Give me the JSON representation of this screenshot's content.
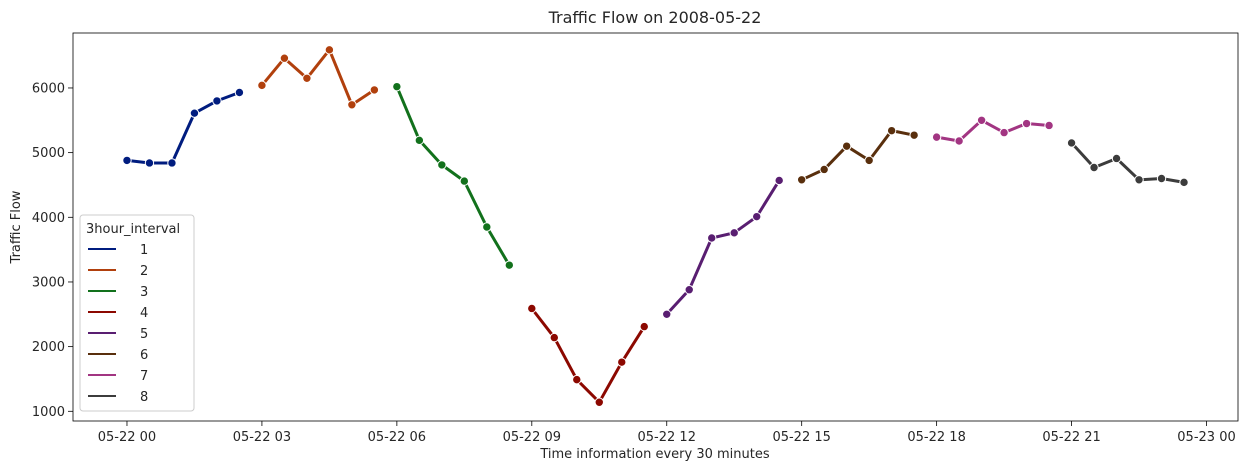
{
  "chart_data": {
    "type": "line",
    "title": "Traffic Flow on 2008-05-22",
    "xlabel": "Time information every 30 minutes",
    "ylabel": "Traffic Flow",
    "x_ticks": [
      "05-22 00",
      "05-22 03",
      "05-22 06",
      "05-22 09",
      "05-22 12",
      "05-22 15",
      "05-22 18",
      "05-22 21",
      "05-23 00"
    ],
    "y_ticks": [
      1000,
      2000,
      3000,
      4000,
      5000,
      6000
    ],
    "xlim_hours": [
      -1.2,
      24.7
    ],
    "ylim": [
      850,
      6850
    ],
    "legend": {
      "title": "3hour_interval",
      "position": "lower-left"
    },
    "series": [
      {
        "name": "1",
        "color": "#001c7f",
        "hours": [
          0,
          0.5,
          1,
          1.5,
          2,
          2.5
        ],
        "values": [
          4880,
          4840,
          4840,
          5610,
          5800,
          5930
        ]
      },
      {
        "name": "2",
        "color": "#b1400d",
        "hours": [
          3,
          3.5,
          4,
          4.5,
          5,
          5.5
        ],
        "values": [
          6040,
          6460,
          6150,
          6590,
          5740,
          5970
        ]
      },
      {
        "name": "3",
        "color": "#12711c",
        "hours": [
          6,
          6.5,
          7,
          7.5,
          8,
          8.5
        ],
        "values": [
          6020,
          5190,
          4810,
          4560,
          3850,
          3260
        ]
      },
      {
        "name": "4",
        "color": "#8c0800",
        "hours": [
          9,
          9.5,
          10,
          10.5,
          11,
          11.5
        ],
        "values": [
          2590,
          2140,
          1490,
          1140,
          1760,
          2310
        ]
      },
      {
        "name": "5",
        "color": "#591e71",
        "hours": [
          12,
          12.5,
          13,
          13.5,
          14,
          14.5
        ],
        "values": [
          2500,
          2880,
          3680,
          3760,
          4010,
          4570
        ]
      },
      {
        "name": "6",
        "color": "#592f0d",
        "hours": [
          15,
          15.5,
          16,
          16.5,
          17,
          17.5
        ],
        "values": [
          4580,
          4740,
          5100,
          4880,
          5340,
          5270
        ]
      },
      {
        "name": "7",
        "color": "#a23582",
        "hours": [
          18,
          18.5,
          19,
          19.5,
          20,
          20.5
        ],
        "values": [
          5240,
          5180,
          5500,
          5310,
          5450,
          5420
        ]
      },
      {
        "name": "8",
        "color": "#3c3c3c",
        "hours": [
          21,
          21.5,
          22,
          22.5,
          23,
          23.5
        ],
        "values": [
          5150,
          4770,
          4910,
          4580,
          4600,
          4540
        ]
      }
    ]
  }
}
